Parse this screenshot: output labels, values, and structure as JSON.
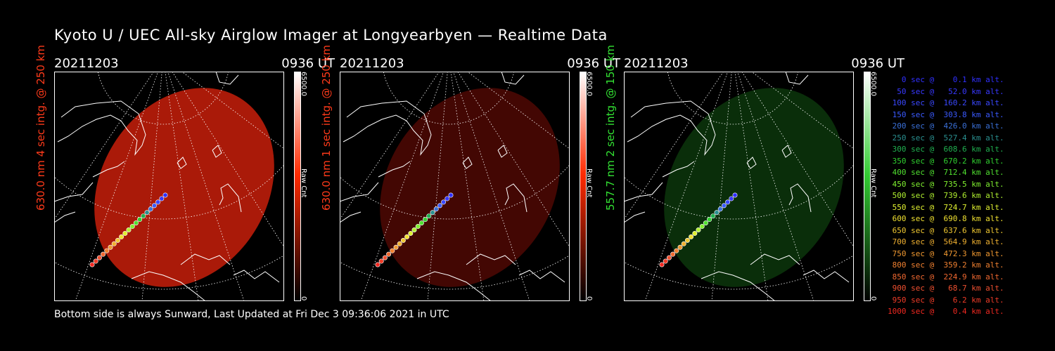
{
  "title": "Kyoto U / UEC All-sky Airglow Imager at Longyearbyen — Realtime Data",
  "footer": "Bottom side is always Sunward, Last Updated at Fri Dec  3 09:36:06 2021 in UTC",
  "panels": [
    {
      "date": "20211203",
      "time": "0936 UT",
      "ylabel": "630.0 nm 4 sec intg. @ 250 km",
      "label_color": "#ff3a1a",
      "cbar_max": "6500.0",
      "cbar_min": "0",
      "cbar_label": "Raw Cnt",
      "cbar_color": "#ff2a00",
      "blob_color": "#c81e0a",
      "blob_opacity": 0.85
    },
    {
      "date": "20211203",
      "time": "0936 UT",
      "ylabel": "630.0 nm 1 sec intg. @ 250 km",
      "label_color": "#ff3a1a",
      "cbar_max": "6500.0",
      "cbar_min": "0",
      "cbar_label": "Raw Cnt",
      "cbar_color": "#ff2a00",
      "blob_color": "#5a0a04",
      "blob_opacity": 0.75
    },
    {
      "date": "20211203",
      "time": "0936 UT",
      "ylabel": "557.7 nm 2 sec intg. @ 150 km",
      "label_color": "#33e233",
      "cbar_max": "6500.0",
      "cbar_min": "0",
      "cbar_label": "Raw Cnt",
      "cbar_color": "#33cc33",
      "blob_color": "#0c3a0c",
      "blob_opacity": 0.8
    }
  ],
  "legend": [
    {
      "text": "   0 sec @    0.1 km alt.",
      "color": "#3030ff"
    },
    {
      "text": "  50 sec @   52.0 km alt.",
      "color": "#3838ff"
    },
    {
      "text": " 100 sec @  160.2 km alt.",
      "color": "#3a48ff"
    },
    {
      "text": " 150 sec @  303.8 km alt.",
      "color": "#3a5aff"
    },
    {
      "text": " 200 sec @  426.0 km alt.",
      "color": "#3a70d8"
    },
    {
      "text": " 250 sec @  527.4 km alt.",
      "color": "#2a9090"
    },
    {
      "text": " 300 sec @  608.6 km alt.",
      "color": "#20b050"
    },
    {
      "text": " 350 sec @  670.2 km alt.",
      "color": "#30d030"
    },
    {
      "text": " 400 sec @  712.4 km alt.",
      "color": "#50e030"
    },
    {
      "text": " 450 sec @  735.5 km alt.",
      "color": "#80f030"
    },
    {
      "text": " 500 sec @  739.6 km alt.",
      "color": "#b0f030"
    },
    {
      "text": " 550 sec @  724.7 km alt.",
      "color": "#e0f030"
    },
    {
      "text": " 600 sec @  690.8 km alt.",
      "color": "#f0e030"
    },
    {
      "text": " 650 sec @  637.6 km alt.",
      "color": "#f0c830"
    },
    {
      "text": " 700 sec @  564.9 km alt.",
      "color": "#f0b030"
    },
    {
      "text": " 750 sec @  472.3 km alt.",
      "color": "#f09830"
    },
    {
      "text": " 800 sec @  359.2 km alt.",
      "color": "#f08030"
    },
    {
      "text": " 850 sec @  224.9 km alt.",
      "color": "#f06830"
    },
    {
      "text": " 900 sec @   68.7 km alt.",
      "color": "#f05030"
    },
    {
      "text": " 950 sec @    6.2 km alt.",
      "color": "#f03c28"
    },
    {
      "text": "1000 sec @    0.4 km alt.",
      "color": "#f02820"
    }
  ]
}
